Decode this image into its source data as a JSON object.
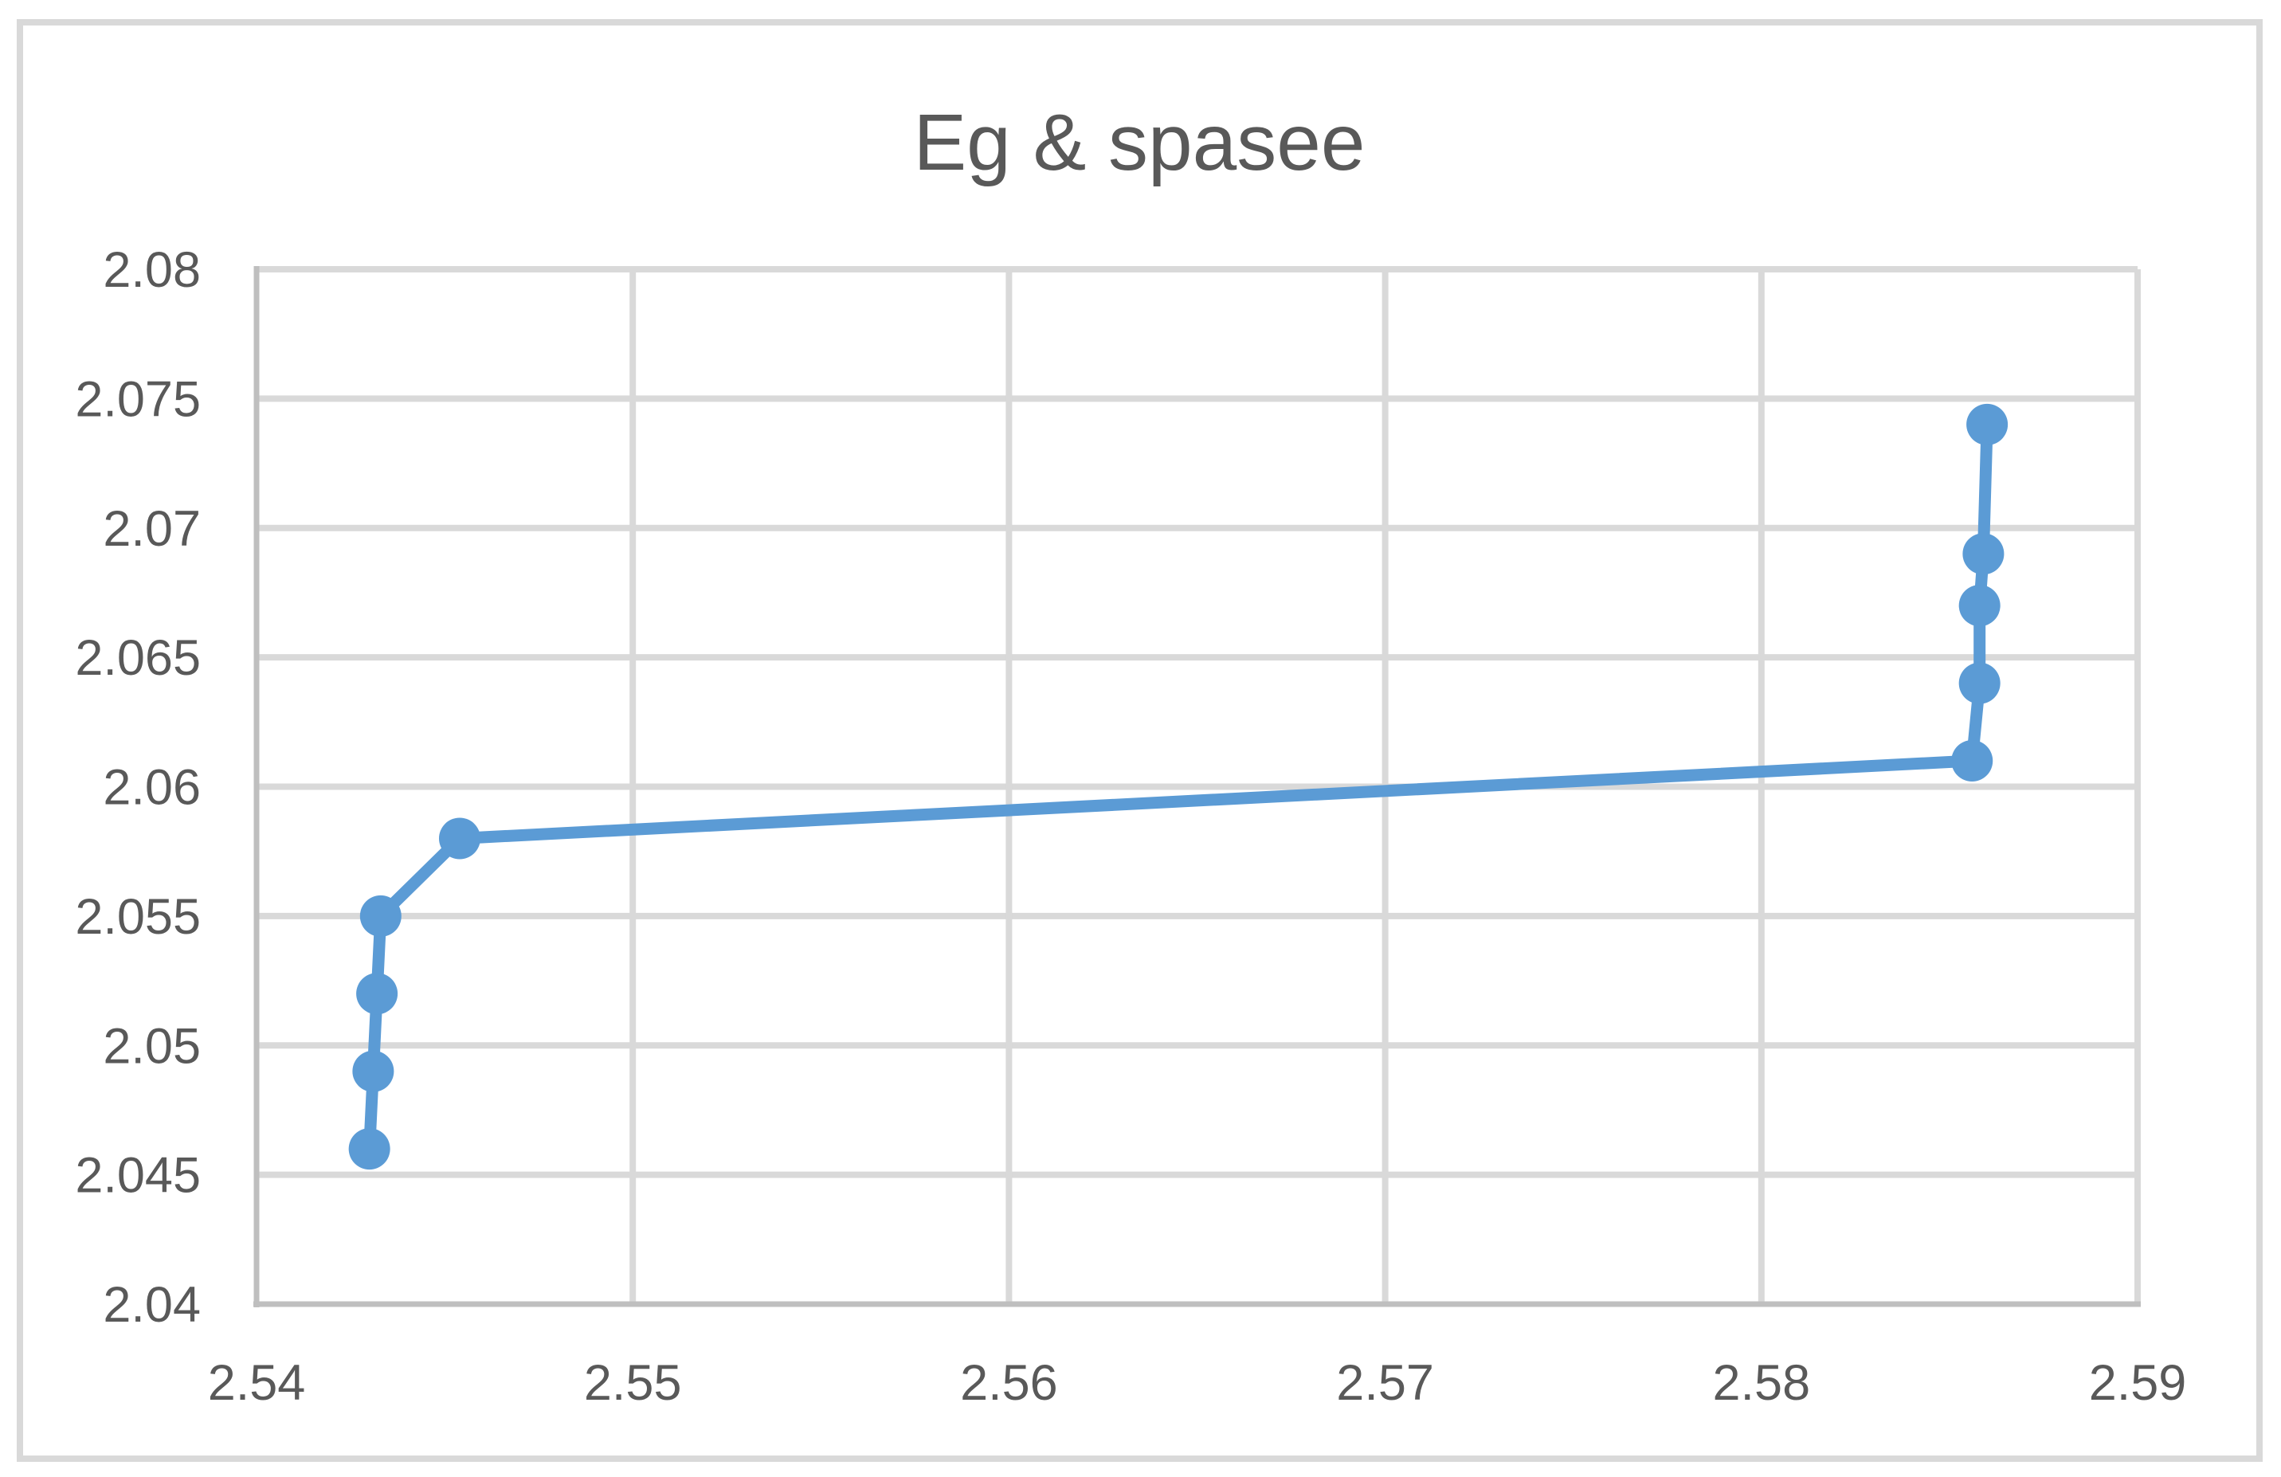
{
  "chart_data": {
    "type": "line",
    "title": "Eg & spasee",
    "xlabel": "",
    "ylabel": "",
    "xlim": [
      2.54,
      2.59
    ],
    "ylim": [
      2.04,
      2.08
    ],
    "grid": true,
    "legend": false,
    "x_ticks": [
      {
        "value": 2.54,
        "label": "2.54"
      },
      {
        "value": 2.55,
        "label": "2.55"
      },
      {
        "value": 2.56,
        "label": "2.56"
      },
      {
        "value": 2.57,
        "label": "2.57"
      },
      {
        "value": 2.58,
        "label": "2.58"
      },
      {
        "value": 2.59,
        "label": "2.59"
      }
    ],
    "y_ticks": [
      {
        "value": 2.04,
        "label": "2.04"
      },
      {
        "value": 2.045,
        "label": "2.045"
      },
      {
        "value": 2.05,
        "label": "2.05"
      },
      {
        "value": 2.055,
        "label": "2.055"
      },
      {
        "value": 2.06,
        "label": "2.06"
      },
      {
        "value": 2.065,
        "label": "2.065"
      },
      {
        "value": 2.07,
        "label": "2.07"
      },
      {
        "value": 2.075,
        "label": "2.075"
      },
      {
        "value": 2.08,
        "label": "2.08"
      }
    ],
    "series": [
      {
        "name": "Eg & spasee",
        "marker": "circle",
        "points": [
          {
            "x": 2.543,
            "y": 2.046
          },
          {
            "x": 2.5431,
            "y": 2.049
          },
          {
            "x": 2.5432,
            "y": 2.052
          },
          {
            "x": 2.5433,
            "y": 2.055
          },
          {
            "x": 2.5454,
            "y": 2.058
          },
          {
            "x": 2.5856,
            "y": 2.061
          },
          {
            "x": 2.5858,
            "y": 2.064
          },
          {
            "x": 2.5858,
            "y": 2.067
          },
          {
            "x": 2.5859,
            "y": 2.069
          },
          {
            "x": 2.586,
            "y": 2.074
          }
        ]
      }
    ],
    "colors": {
      "line": "#5B9BD5",
      "grid": "#D9D9D9",
      "axis": "#BFBFBF",
      "text": "#595959",
      "border": "#D9D9D9",
      "background": "#FFFFFF"
    }
  }
}
